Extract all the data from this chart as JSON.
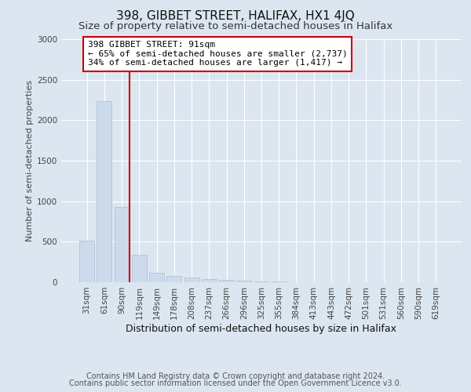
{
  "title": "398, GIBBET STREET, HALIFAX, HX1 4JQ",
  "subtitle": "Size of property relative to semi-detached houses in Halifax",
  "xlabel": "Distribution of semi-detached houses by size in Halifax",
  "ylabel": "Number of semi-detached properties",
  "footnote1": "Contains HM Land Registry data © Crown copyright and database right 2024.",
  "footnote2": "Contains public sector information licensed under the Open Government Licence v3.0.",
  "annotation_line1": "398 GIBBET STREET: 91sqm",
  "annotation_line2": "← 65% of semi-detached houses are smaller (2,737)",
  "annotation_line3": "34% of semi-detached houses are larger (1,417) →",
  "categories": [
    "31sqm",
    "61sqm",
    "90sqm",
    "119sqm",
    "149sqm",
    "178sqm",
    "208sqm",
    "237sqm",
    "266sqm",
    "296sqm",
    "325sqm",
    "355sqm",
    "384sqm",
    "413sqm",
    "443sqm",
    "472sqm",
    "501sqm",
    "531sqm",
    "560sqm",
    "590sqm",
    "619sqm"
  ],
  "values": [
    510,
    2240,
    930,
    340,
    115,
    80,
    55,
    40,
    25,
    15,
    10,
    5,
    0,
    0,
    0,
    0,
    0,
    0,
    0,
    0,
    0
  ],
  "bar_color": "#ccdaec",
  "bar_edge_color": "#a8bdd4",
  "property_line_color": "#cc0000",
  "annotation_box_facecolor": "#ffffff",
  "annotation_box_edgecolor": "#cc0000",
  "background_color": "#dce6f0",
  "plot_background_color": "#dce6f0",
  "grid_color": "#ffffff",
  "ylim": [
    0,
    3000
  ],
  "yticks": [
    0,
    500,
    1000,
    1500,
    2000,
    2500,
    3000
  ],
  "title_fontsize": 11,
  "subtitle_fontsize": 9.5,
  "ylabel_fontsize": 8,
  "xlabel_fontsize": 9,
  "tick_fontsize": 7.5,
  "annotation_fontsize": 8,
  "footnote_fontsize": 7
}
